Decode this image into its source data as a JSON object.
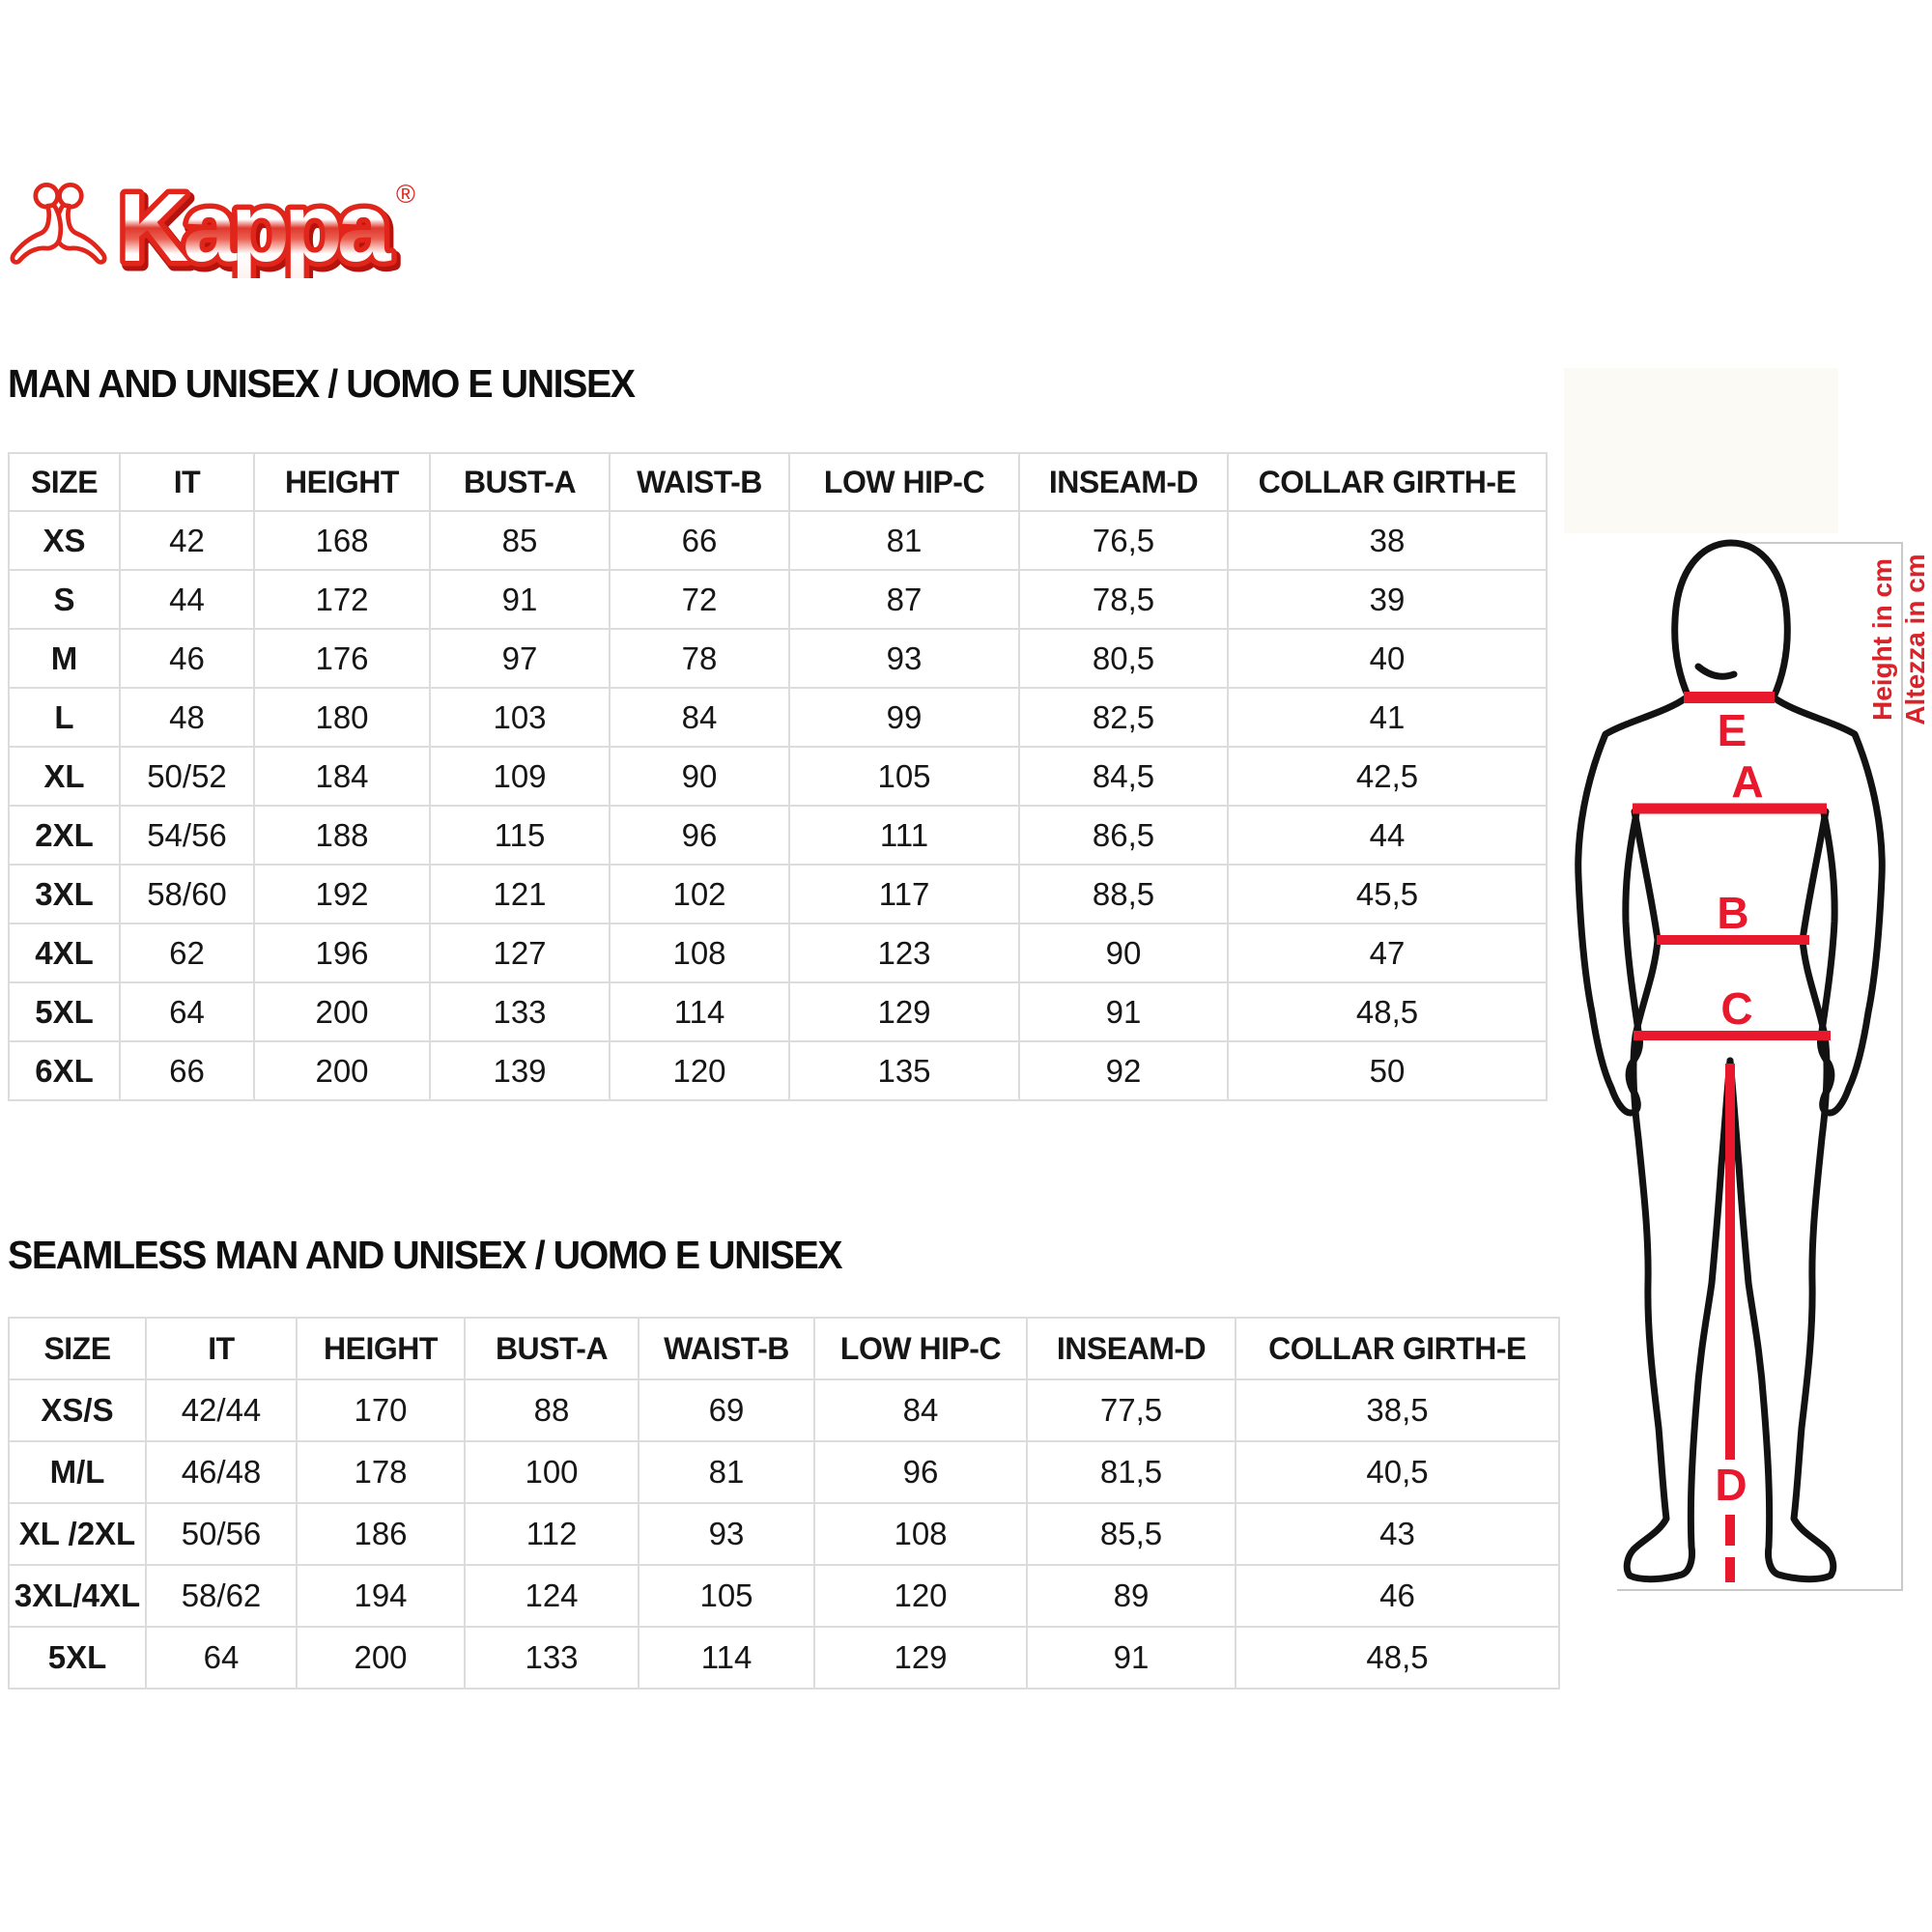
{
  "logo": {
    "brand": "Kappa",
    "registered_mark": "®"
  },
  "tables": [
    {
      "title": "MAN AND UNISEX / UOMO E UNISEX",
      "headers": [
        "SIZE",
        "IT",
        "HEIGHT",
        "BUST-A",
        "WAIST-B",
        "LOW HIP-C",
        "INSEAM-D",
        "COLLAR GIRTH-E"
      ],
      "rows": [
        [
          "XS",
          "42",
          "168",
          "85",
          "66",
          "81",
          "76,5",
          "38"
        ],
        [
          "S",
          "44",
          "172",
          "91",
          "72",
          "87",
          "78,5",
          "39"
        ],
        [
          "M",
          "46",
          "176",
          "97",
          "78",
          "93",
          "80,5",
          "40"
        ],
        [
          "L",
          "48",
          "180",
          "103",
          "84",
          "99",
          "82,5",
          "41"
        ],
        [
          "XL",
          "50/52",
          "184",
          "109",
          "90",
          "105",
          "84,5",
          "42,5"
        ],
        [
          "2XL",
          "54/56",
          "188",
          "115",
          "96",
          "111",
          "86,5",
          "44"
        ],
        [
          "3XL",
          "58/60",
          "192",
          "121",
          "102",
          "117",
          "88,5",
          "45,5"
        ],
        [
          "4XL",
          "62",
          "196",
          "127",
          "108",
          "123",
          "90",
          "47"
        ],
        [
          "5XL",
          "64",
          "200",
          "133",
          "114",
          "129",
          "91",
          "48,5"
        ],
        [
          "6XL",
          "66",
          "200",
          "139",
          "120",
          "135",
          "92",
          "50"
        ]
      ]
    },
    {
      "title": "SEAMLESS MAN AND UNISEX / UOMO E UNISEX",
      "headers": [
        "SIZE",
        "IT",
        "HEIGHT",
        "BUST-A",
        "WAIST-B",
        "LOW HIP-C",
        "INSEAM-D",
        "COLLAR GIRTH-E"
      ],
      "rows": [
        [
          "XS/S",
          "42/44",
          "170",
          "88",
          "69",
          "84",
          "77,5",
          "38,5"
        ],
        [
          "M/L",
          "46/48",
          "178",
          "100",
          "81",
          "96",
          "81,5",
          "40,5"
        ],
        [
          "XL /2XL",
          "50/56",
          "186",
          "112",
          "93",
          "108",
          "85,5",
          "43"
        ],
        [
          "3XL/4XL",
          "58/62",
          "194",
          "124",
          "105",
          "120",
          "89",
          "46"
        ],
        [
          "5XL",
          "64",
          "200",
          "133",
          "114",
          "129",
          "91",
          "48,5"
        ]
      ]
    }
  ],
  "figure": {
    "labels": {
      "collar": "E",
      "bust": "A",
      "waist": "B",
      "low_hip": "C",
      "inseam": "D"
    },
    "axis_note_en": "Height in cm",
    "axis_note_it": "Altezza in cm"
  },
  "colors": {
    "accent_red": "#e8192c",
    "note_red": "#d8232a",
    "logo_red": "#e1251b",
    "grid_gray": "#dcdcdc",
    "panel_border_gray": "#c9c9c9"
  }
}
